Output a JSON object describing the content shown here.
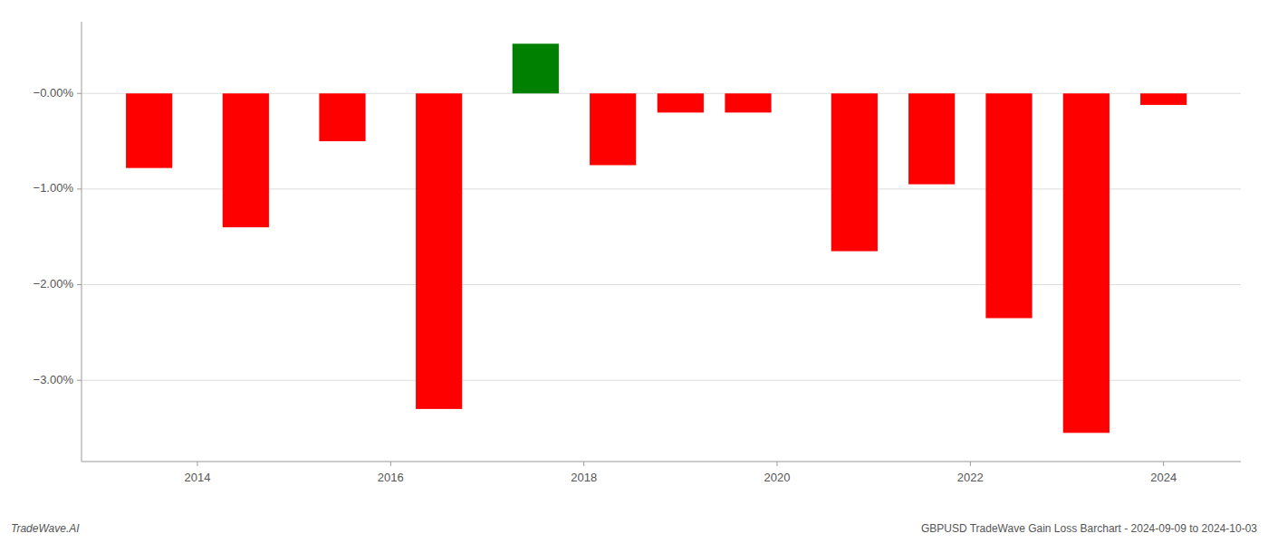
{
  "chart_data": {
    "type": "bar",
    "x": [
      2013.5,
      2014.5,
      2015.5,
      2016.5,
      2017.5,
      2018.3,
      2019.0,
      2019.7,
      2020.8,
      2021.6,
      2022.4,
      2023.2,
      2024.0
    ],
    "values": [
      -0.78,
      -1.4,
      -0.5,
      -3.3,
      0.52,
      -0.75,
      -0.2,
      -0.2,
      -1.65,
      -0.95,
      -2.35,
      -3.55,
      -0.12
    ],
    "colors": [
      "#ff0000",
      "#ff0000",
      "#ff0000",
      "#ff0000",
      "#008000",
      "#ff0000",
      "#ff0000",
      "#ff0000",
      "#ff0000",
      "#ff0000",
      "#ff0000",
      "#ff0000",
      "#ff0000"
    ],
    "xlim": [
      2012.8,
      2024.8
    ],
    "xticks": [
      2014,
      2016,
      2018,
      2020,
      2022,
      2024
    ],
    "ylim": [
      -3.85,
      0.75
    ],
    "yticks": [
      {
        "value": 0.0,
        "label": "−0.00%"
      },
      {
        "value": -1.0,
        "label": "−1.00%"
      },
      {
        "value": -2.0,
        "label": "−2.00%"
      },
      {
        "value": -3.0,
        "label": "−3.00%"
      }
    ],
    "grid": true,
    "annotations": [
      "TradeWave.AI",
      "GBPUSD TradeWave Gain Loss Barchart - 2024-09-09 to 2024-10-03"
    ]
  }
}
